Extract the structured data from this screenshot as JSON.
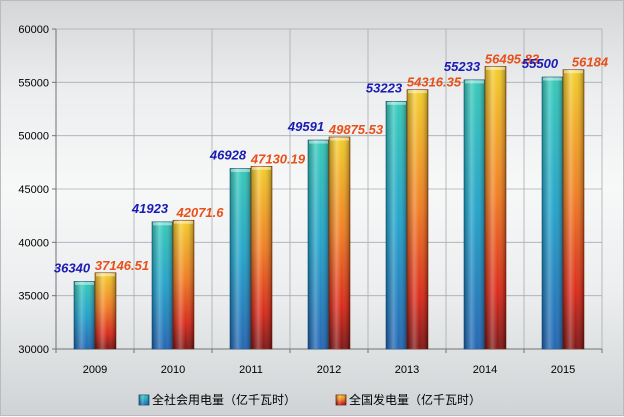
{
  "chart_data": {
    "type": "bar",
    "categories": [
      "2009",
      "2010",
      "2011",
      "2012",
      "2013",
      "2014",
      "2015"
    ],
    "series": [
      {
        "name": "全社会用电量（亿千瓦时）",
        "values": [
          36340,
          41923,
          46928,
          49591,
          53223,
          55233,
          55500
        ],
        "labels": [
          "36340",
          "41923",
          "46928",
          "49591",
          "53223",
          "55233",
          "55500"
        ]
      },
      {
        "name": "全国发电量（亿千瓦时）",
        "values": [
          37146.51,
          42071.6,
          47130.19,
          49875.53,
          54316.35,
          56495.83,
          56184
        ],
        "labels": [
          "37146.51",
          "42071.6",
          "47130.19",
          "49875.53",
          "54316.35",
          "56495.83",
          "56184"
        ]
      }
    ],
    "ylim": [
      30000,
      60000
    ],
    "yticks": [
      "30000",
      "35000",
      "40000",
      "45000",
      "50000",
      "55000",
      "60000"
    ],
    "grid": true,
    "legend_position": "bottom",
    "colors": {
      "series1": "#20b8b0",
      "series2": "#f0a020",
      "label_series1": "#1a1ab4",
      "label_series2": "#e8501a"
    }
  }
}
